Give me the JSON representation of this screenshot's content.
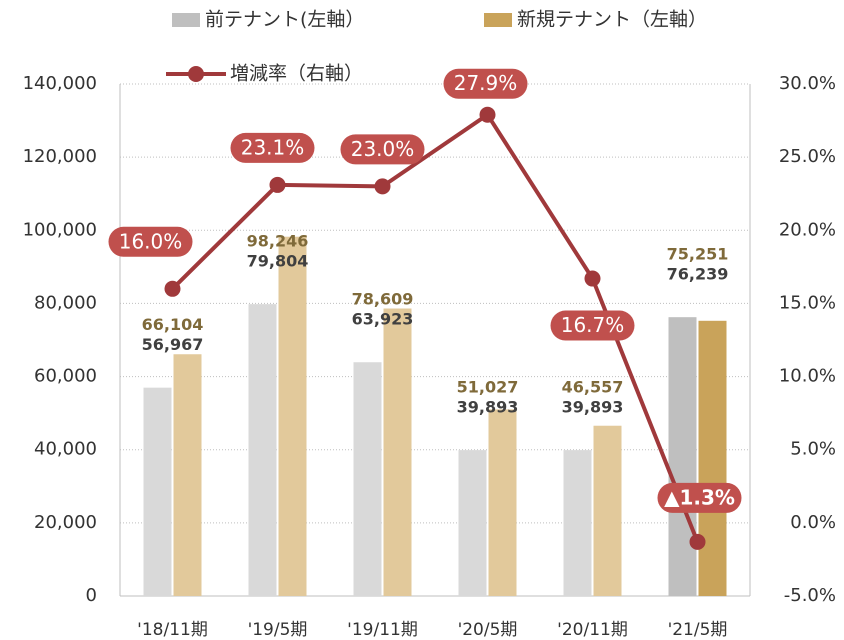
{
  "chart_data": {
    "type": "bar",
    "categories": [
      "'18/11期",
      "'19/5期",
      "'19/11期",
      "'20/5期",
      "'20/11期",
      "'21/5期"
    ],
    "series": [
      {
        "name": "前テナント(左軸）",
        "color": "#d9d9d9",
        "colors": [
          "#d9d9d9",
          "#d9d9d9",
          "#d9d9d9",
          "#d9d9d9",
          "#d9d9d9",
          "#bfbfbf"
        ],
        "label_color": "#404040",
        "values": [
          56967,
          79804,
          63923,
          39893,
          39893,
          76239
        ],
        "value_labels": [
          "56,967",
          "79,804",
          "63,923",
          "39,893",
          "39,893",
          "76,239"
        ]
      },
      {
        "name": "新規テナント（左軸）",
        "color": "#e2c99b",
        "colors": [
          "#e2c99b",
          "#e2c99b",
          "#e2c99b",
          "#e2c99b",
          "#e2c99b",
          "#c9a35a"
        ],
        "label_color": "#7f6a3a",
        "values": [
          66104,
          98246,
          78609,
          51027,
          46557,
          75251
        ],
        "value_labels": [
          "66,104",
          "98,246",
          "78,609",
          "51,027",
          "46,557",
          "75,251"
        ]
      },
      {
        "name": "増減率（右軸）",
        "type": "line",
        "axis": "y2",
        "color": "#a0393b",
        "values": [
          16.0,
          23.1,
          23.0,
          27.9,
          16.7,
          -1.3
        ],
        "value_labels": [
          "16.0%",
          "23.1%",
          "23.0%",
          "27.9%",
          "16.7%",
          "▲1.3%"
        ]
      }
    ],
    "ylim": [
      0,
      140000
    ],
    "yticks": [
      0,
      {
        "value": 20000,
        "label": "20,000"
      },
      {
        "value": 40000,
        "label": "40,000"
      },
      {
        "value": 60000,
        "label": "60,000"
      },
      {
        "value": 80000,
        "label": "80,000"
      },
      {
        "value": 100000,
        "label": "100,000"
      },
      {
        "value": 120000,
        "label": "120,000"
      },
      {
        "value": 140000,
        "label": "140,000"
      }
    ],
    "y2lim": [
      -5,
      30
    ],
    "y2ticks": [
      {
        "value": -5,
        "label": "-5.0%"
      },
      {
        "value": 0,
        "label": "0.0%"
      },
      {
        "value": 5,
        "label": "5.0%"
      },
      {
        "value": 10,
        "label": "10.0%"
      },
      {
        "value": 15,
        "label": "15.0%"
      },
      {
        "value": 20,
        "label": "20.0%"
      },
      {
        "value": 25,
        "label": "25.0%"
      },
      {
        "value": 30,
        "label": "30.0%"
      }
    ],
    "grid": true
  }
}
